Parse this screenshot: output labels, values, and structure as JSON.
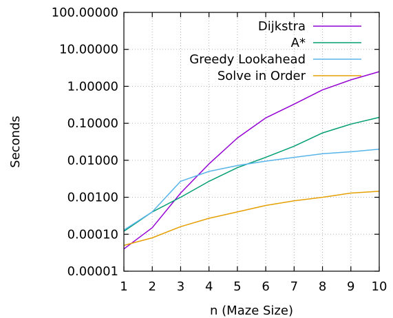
{
  "chart_data": {
    "type": "line",
    "title": "",
    "xlabel": "n (Maze Size)",
    "ylabel": "Seconds",
    "x": [
      1,
      2,
      3,
      4,
      5,
      6,
      7,
      8,
      9,
      10
    ],
    "xlim": [
      1,
      10
    ],
    "ylim": [
      1e-05,
      100
    ],
    "y_scale": "log",
    "x_tick_labels": [
      "1",
      "2",
      "3",
      "4",
      "5",
      "6",
      "7",
      "8",
      "9",
      "10"
    ],
    "y_tick_values": [
      1e-05,
      0.0001,
      0.001,
      0.01,
      0.1,
      1,
      10,
      100
    ],
    "y_tick_labels": [
      "0.00001",
      "0.00010",
      "0.00100",
      "0.01000",
      "0.10000",
      "1.00000",
      "10.00000",
      "100.00000"
    ],
    "grid": true,
    "legend_position": "top-right",
    "series": [
      {
        "name": "Dijkstra",
        "color": "#9400d3",
        "values": [
          4e-05,
          0.00015,
          0.0013,
          0.008,
          0.04,
          0.14,
          0.33,
          0.8,
          1.5,
          2.5
        ]
      },
      {
        "name": "A*",
        "color": "#009e73",
        "values": [
          0.00012,
          0.0004,
          0.001,
          0.0027,
          0.0063,
          0.012,
          0.024,
          0.055,
          0.095,
          0.145
        ]
      },
      {
        "name": "Greedy Lookahead",
        "color": "#56b4e9",
        "values": [
          0.00013,
          0.0004,
          0.0027,
          0.005,
          0.0072,
          0.0095,
          0.012,
          0.015,
          0.017,
          0.02
        ]
      },
      {
        "name": "Solve in Order",
        "color": "#e69f00",
        "values": [
          5e-05,
          8e-05,
          0.00016,
          0.00027,
          0.0004,
          0.0006,
          0.0008,
          0.001,
          0.0013,
          0.00145
        ]
      }
    ]
  }
}
